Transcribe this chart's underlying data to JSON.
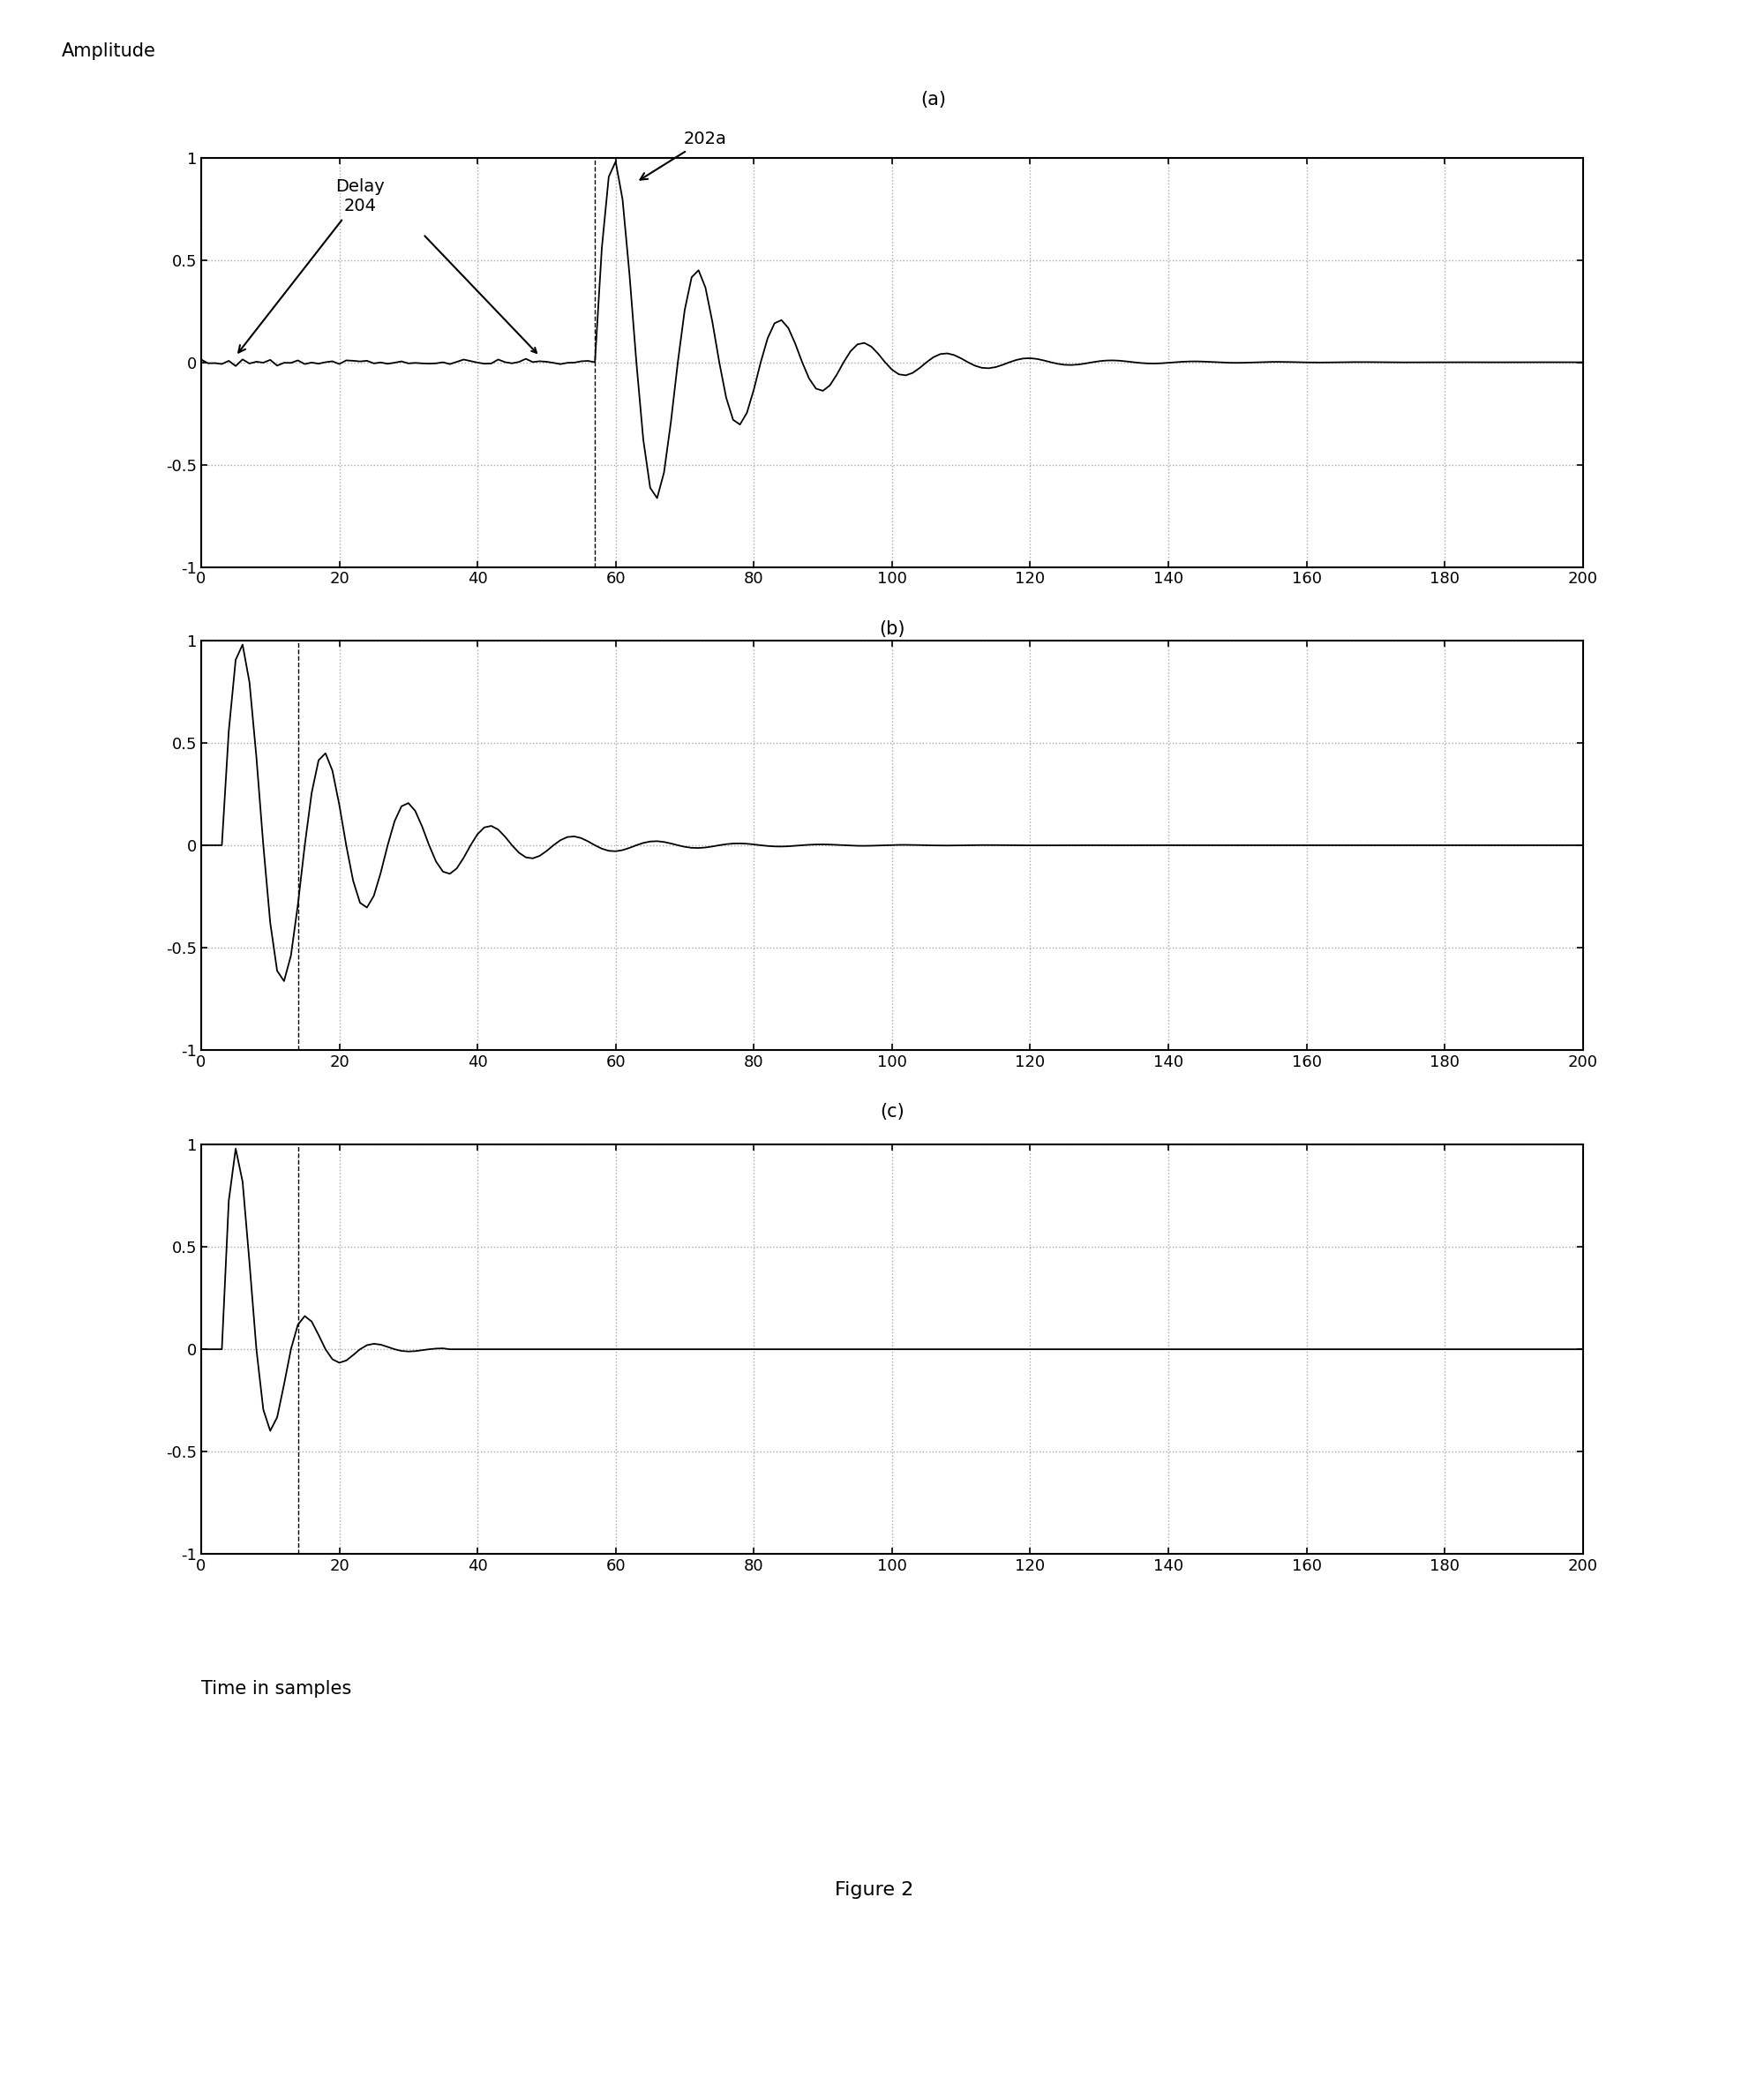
{
  "title": "Figure 2",
  "ylabel": "Amplitude",
  "xlabel": "Time in samples",
  "xlim": [
    0,
    200
  ],
  "ylim": [
    -1,
    1
  ],
  "xticks": [
    0,
    20,
    40,
    60,
    80,
    100,
    120,
    140,
    160,
    180,
    200
  ],
  "yticks": [
    -1,
    -0.5,
    0,
    0.5,
    1
  ],
  "background_color": "#ffffff",
  "line_color": "#000000",
  "grid_major_color": "#aaaaaa",
  "grid_minor_color": "#cccccc",
  "vline_color": "#555555",
  "delay_label": "Delay\n204",
  "label_202a": "202a",
  "label_a": "(a)",
  "label_b": "(b)",
  "label_c": "(c)",
  "annotation_fontsize": 14,
  "tick_fontsize": 13,
  "axis_label_fontsize": 15,
  "title_fontsize": 16
}
